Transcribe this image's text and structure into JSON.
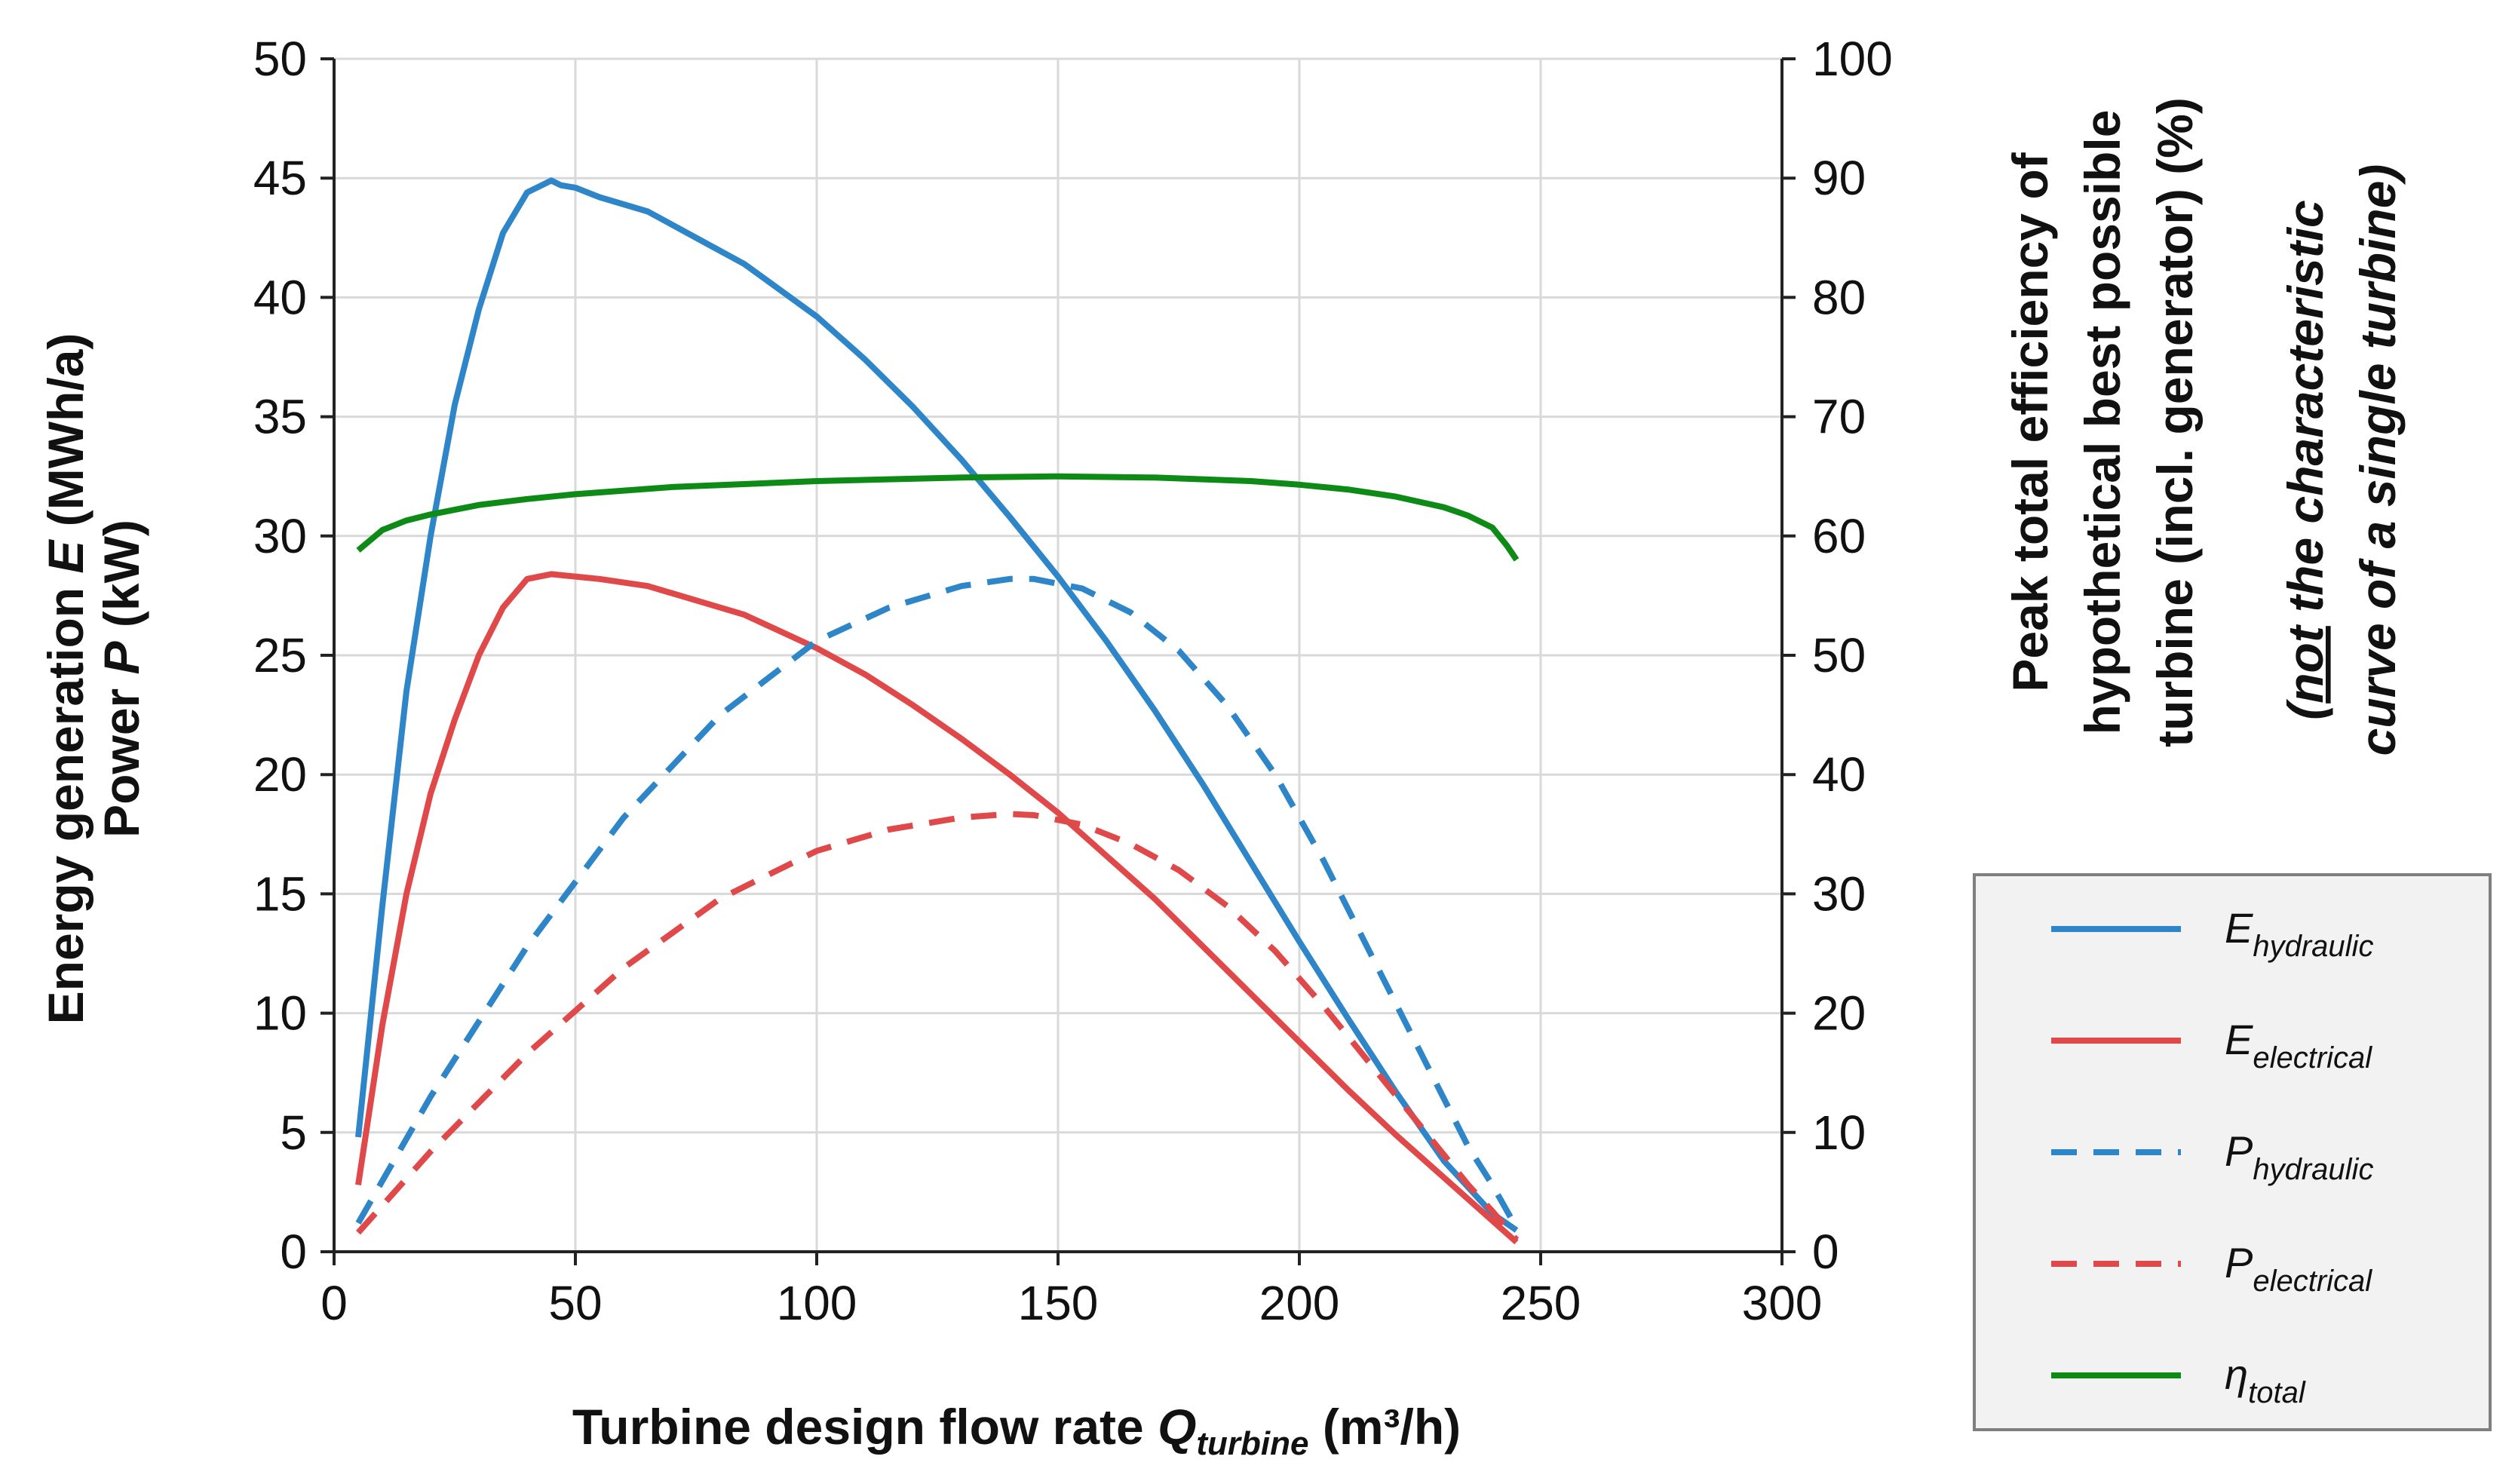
{
  "chart_data": {
    "type": "line",
    "x_axis": {
      "label_main": "Turbine design flow rate ",
      "label_var": "Q",
      "label_sub": "turbine",
      "label_unit": " (m³/h)",
      "min": 0,
      "max": 300,
      "ticks": [
        0,
        50,
        100,
        150,
        200,
        250,
        300
      ]
    },
    "y_left": {
      "label_line1_pre": "Energy generation ",
      "label_line1_var": "E",
      "label_line1_unit": " (MWh/a)",
      "label_line2_pre": "Power ",
      "label_line2_var": "P",
      "label_line2_unit": " (kW)",
      "min": 0,
      "max": 50,
      "ticks": [
        0,
        5,
        10,
        15,
        20,
        25,
        30,
        35,
        40,
        45,
        50
      ]
    },
    "y_right": {
      "label_line1": "Peak total efficiency of",
      "label_line2": "hypothetical best possible",
      "label_line3": "turbine (incl. generator) (%)",
      "min": 0,
      "max": 100,
      "ticks": [
        0,
        10,
        20,
        30,
        40,
        50,
        60,
        70,
        80,
        90,
        100
      ]
    },
    "annotation": {
      "open_paren": "(",
      "not_word": "not",
      "line1_rest": " the characteristic",
      "line2": "curve of a single turbine)"
    },
    "grid": true,
    "series": [
      {
        "name": "E_hydraulic",
        "legend_main": "E",
        "legend_sub": "hydraulic",
        "color": "#2E86C8",
        "dash": false,
        "axis": "left",
        "x": [
          5,
          10,
          15,
          20,
          25,
          30,
          35,
          40,
          45,
          47,
          50,
          55,
          65,
          75,
          85,
          100,
          110,
          120,
          130,
          140,
          150,
          160,
          170,
          180,
          190,
          200,
          210,
          220,
          230,
          240,
          245
        ],
        "y": [
          4.8,
          14.5,
          23.5,
          30.0,
          35.5,
          39.5,
          42.7,
          44.4,
          44.9,
          44.7,
          44.6,
          44.2,
          43.6,
          42.5,
          41.4,
          39.2,
          37.4,
          35.4,
          33.2,
          30.8,
          28.3,
          25.6,
          22.7,
          19.6,
          16.3,
          13.0,
          9.8,
          6.7,
          3.8,
          1.6,
          0.9
        ]
      },
      {
        "name": "E_electrical",
        "legend_main": "E",
        "legend_sub": "electrical",
        "color": "#E0494A",
        "dash": false,
        "axis": "left",
        "x": [
          5,
          10,
          15,
          20,
          25,
          30,
          35,
          40,
          45,
          50,
          55,
          65,
          75,
          85,
          100,
          110,
          120,
          130,
          140,
          150,
          160,
          170,
          180,
          190,
          200,
          210,
          220,
          230,
          240,
          245
        ],
        "y": [
          2.8,
          9.5,
          15.0,
          19.2,
          22.3,
          25.0,
          27.0,
          28.2,
          28.4,
          28.3,
          28.2,
          27.9,
          27.3,
          26.7,
          25.3,
          24.2,
          22.9,
          21.5,
          20.0,
          18.4,
          16.6,
          14.8,
          12.8,
          10.8,
          8.8,
          6.8,
          4.9,
          3.1,
          1.3,
          0.4
        ]
      },
      {
        "name": "P_hydraulic",
        "legend_main": "P",
        "legend_sub": "hydraulic",
        "color": "#2E86C8",
        "dash": true,
        "axis": "left",
        "x": [
          5,
          20,
          40,
          60,
          80,
          100,
          115,
          130,
          140,
          145,
          155,
          165,
          175,
          185,
          195,
          205,
          215,
          225,
          235,
          240,
          245
        ],
        "y": [
          1.2,
          6.5,
          12.8,
          18.2,
          22.5,
          25.6,
          27.0,
          27.9,
          28.2,
          28.2,
          27.8,
          26.8,
          25.2,
          22.9,
          20.0,
          16.4,
          12.4,
          8.4,
          4.4,
          2.8,
          1.0
        ]
      },
      {
        "name": "P_electrical",
        "legend_main": "P",
        "legend_sub": "electrical",
        "color": "#E0494A",
        "dash": true,
        "axis": "left",
        "x": [
          5,
          20,
          40,
          60,
          80,
          100,
          115,
          130,
          140,
          145,
          155,
          165,
          175,
          185,
          195,
          205,
          215,
          225,
          235,
          240,
          245
        ],
        "y": [
          0.8,
          4.2,
          8.3,
          11.9,
          14.8,
          16.8,
          17.7,
          18.2,
          18.35,
          18.3,
          17.9,
          17.1,
          16.0,
          14.5,
          12.6,
          10.3,
          7.8,
          5.3,
          2.8,
          1.7,
          0.5
        ]
      },
      {
        "name": "eta_total",
        "legend_main": "η",
        "legend_sub": "total",
        "color": "#0E8A16",
        "dash": false,
        "axis": "right",
        "x": [
          5,
          10,
          15,
          20,
          30,
          40,
          50,
          70,
          100,
          130,
          150,
          170,
          190,
          200,
          210,
          220,
          230,
          235,
          240,
          243,
          245
        ],
        "y": [
          58.8,
          60.5,
          61.3,
          61.8,
          62.6,
          63.1,
          63.5,
          64.1,
          64.6,
          64.9,
          65.0,
          64.9,
          64.6,
          64.3,
          63.9,
          63.3,
          62.4,
          61.7,
          60.7,
          59.2,
          58.0
        ]
      }
    ]
  }
}
